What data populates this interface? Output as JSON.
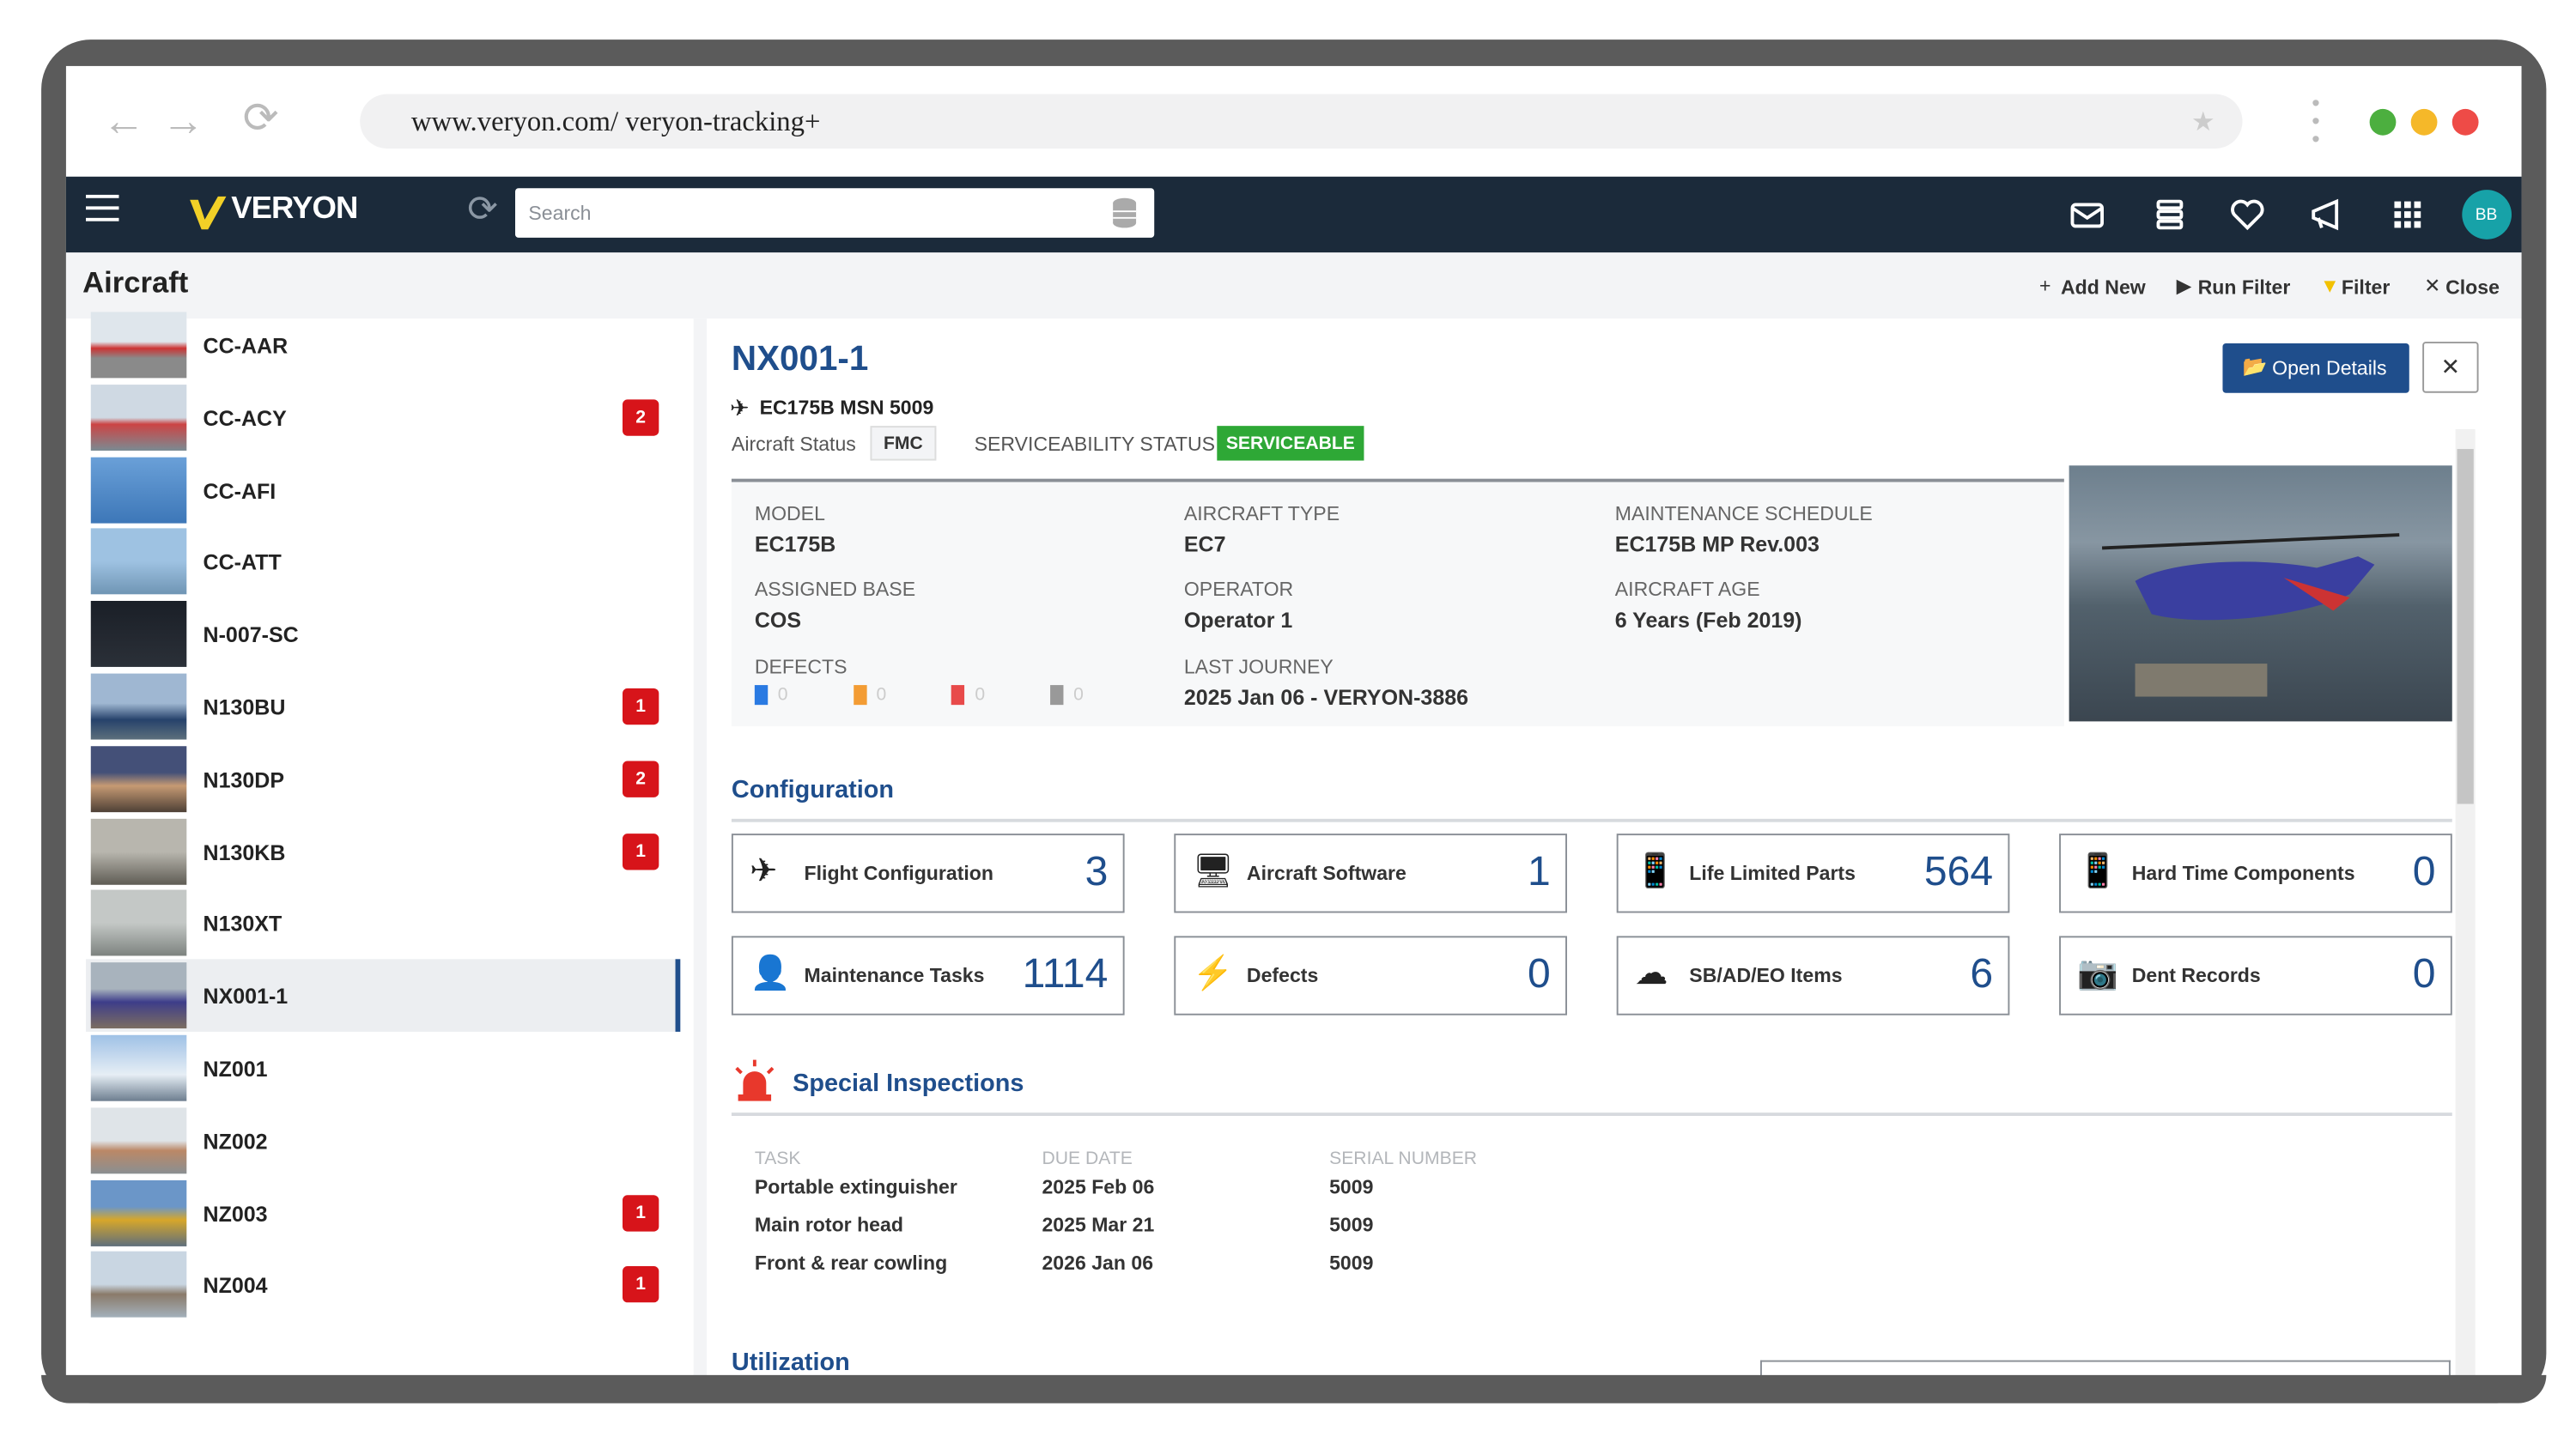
{
  "browser": {
    "url": "www.veryon.com/  veryon-tracking+"
  },
  "app": {
    "brand": "VERYON",
    "search_placeholder": "Search",
    "avatar": "BB"
  },
  "toolbar": {
    "title": "Aircraft",
    "actions": [
      "Add New",
      "Run Filter",
      "Filter",
      "Close"
    ]
  },
  "aircraft_list": [
    {
      "tail": "CC-AAR"
    },
    {
      "tail": "CC-ACY",
      "badge": 2
    },
    {
      "tail": "CC-AFI"
    },
    {
      "tail": "CC-ATT"
    },
    {
      "tail": "N-007-SC"
    },
    {
      "tail": "N130BU",
      "badge": 1
    },
    {
      "tail": "N130DP",
      "badge": 2
    },
    {
      "tail": "N130KB",
      "badge": 1
    },
    {
      "tail": "N130XT"
    },
    {
      "tail": "NX001-1"
    },
    {
      "tail": "NZ001"
    },
    {
      "tail": "NZ002"
    },
    {
      "tail": "NZ003",
      "badge": 1
    },
    {
      "tail": "NZ004",
      "badge": 1
    }
  ],
  "detail": {
    "title": "NX001-1",
    "subtitle": "EC175B MSN 5009",
    "status_label": "Aircraft Status",
    "status": "FMC",
    "serviceability_label": "SERVICEABILITY STATUS",
    "serviceability": "SERVICEABLE",
    "open_details": "Open Details",
    "fields": [
      {
        "label": "MODEL",
        "value": "EC175B"
      },
      {
        "label": "AIRCRAFT TYPE",
        "value": "EC7"
      },
      {
        "label": "MAINTENANCE SCHEDULE",
        "value": "EC175B MP Rev.003"
      },
      {
        "label": "ASSIGNED BASE",
        "value": "COS"
      },
      {
        "label": "OPERATOR",
        "value": "Operator 1"
      },
      {
        "label": "AIRCRAFT AGE",
        "value": "6 Years (Feb 2019)"
      },
      {
        "label": "LAST JOURNEY",
        "value": "2025 Jan 06 - VERYON-3886"
      }
    ],
    "defects": {
      "label": "DEFECTS",
      "counts": [
        0,
        0,
        0,
        0
      ]
    }
  },
  "configuration": {
    "title": "Configuration",
    "tiles": [
      {
        "label": "Flight Configuration",
        "value": 3
      },
      {
        "label": "Aircraft Software",
        "value": 1
      },
      {
        "label": "Life Limited Parts",
        "value": 564
      },
      {
        "label": "Hard Time Components",
        "value": 0
      },
      {
        "label": "Maintenance Tasks",
        "value": 1114
      },
      {
        "label": "Defects",
        "value": 0
      },
      {
        "label": "SB/AD/EO Items",
        "value": 6
      },
      {
        "label": "Dent Records",
        "value": 0
      }
    ]
  },
  "special_inspections": {
    "title": "Special Inspections",
    "columns": [
      "TASK",
      "DUE DATE",
      "SERIAL NUMBER"
    ],
    "rows": [
      [
        "Portable extinguisher",
        "2025 Feb 06",
        "5009"
      ],
      [
        "Main rotor head",
        "2025 Mar 21",
        "5009"
      ],
      [
        "Front & rear cowling",
        "2026 Jan 06",
        "5009"
      ]
    ]
  },
  "utilization": {
    "title": "Utilization"
  }
}
